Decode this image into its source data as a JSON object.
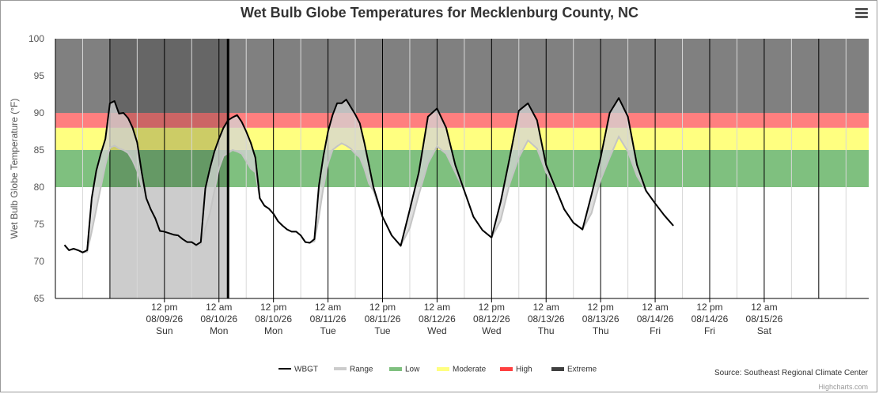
{
  "chart_data": {
    "type": "line",
    "title": "Wet Bulb Globe Temperatures for Mecklenburg County, NC",
    "ylabel": "Wet Bulb Globe Temperature (°F)",
    "ylim": [
      65,
      100
    ],
    "yticks": [
      65,
      70,
      75,
      80,
      85,
      90,
      95,
      100
    ],
    "x_unit": "hours",
    "xlim": [
      -12,
      167
    ],
    "x_ticks": [
      {
        "x": 12,
        "lines": [
          "12 pm",
          "08/09/26",
          "Sun"
        ]
      },
      {
        "x": 24,
        "lines": [
          "12 am",
          "08/10/26",
          "Mon"
        ]
      },
      {
        "x": 36,
        "lines": [
          "12 pm",
          "08/10/26",
          "Mon"
        ]
      },
      {
        "x": 48,
        "lines": [
          "12 am",
          "08/11/26",
          "Tue"
        ]
      },
      {
        "x": 60,
        "lines": [
          "12 pm",
          "08/11/26",
          "Tue"
        ]
      },
      {
        "x": 72,
        "lines": [
          "12 am",
          "08/12/26",
          "Wed"
        ]
      },
      {
        "x": 84,
        "lines": [
          "12 pm",
          "08/12/26",
          "Wed"
        ]
      },
      {
        "x": 96,
        "lines": [
          "12 am",
          "08/13/26",
          "Thu"
        ]
      },
      {
        "x": 108,
        "lines": [
          "12 pm",
          "08/13/26",
          "Thu"
        ]
      },
      {
        "x": 120,
        "lines": [
          "12 am",
          "08/14/26",
          "Fri"
        ]
      },
      {
        "x": 132,
        "lines": [
          "12 pm",
          "08/14/26",
          "Fri"
        ]
      },
      {
        "x": 144,
        "lines": [
          "12 am",
          "08/15/26",
          "Sat"
        ]
      }
    ],
    "bands": [
      {
        "name": "Low",
        "from": 80,
        "to": 85,
        "color": "#7fc07f"
      },
      {
        "name": "Moderate",
        "from": 85,
        "to": 88,
        "color": "#ffff80"
      },
      {
        "name": "High",
        "from": 88,
        "to": 90,
        "color": "#ff7f7f"
      },
      {
        "name": "Extreme",
        "from": 90,
        "to": 100,
        "color": "#808080"
      }
    ],
    "observed_shade": {
      "from": 0,
      "to": 26,
      "color": "#000000"
    },
    "current_marker": 26,
    "series": [
      {
        "name": "WBGT",
        "color": "#000000",
        "points": [
          [
            -10,
            72.2
          ],
          [
            -9,
            71.5
          ],
          [
            -8,
            71.7
          ],
          [
            -7,
            71.5
          ],
          [
            -6,
            71.2
          ],
          [
            -5,
            71.5
          ],
          [
            -4,
            78.5
          ],
          [
            -3,
            82.2
          ],
          [
            -2,
            84.5
          ],
          [
            -1,
            86.5
          ],
          [
            0,
            91.3
          ],
          [
            1,
            91.6
          ],
          [
            2,
            89.9
          ],
          [
            3,
            90
          ],
          [
            4,
            89.3
          ],
          [
            5,
            88
          ],
          [
            6,
            86
          ],
          [
            7,
            82
          ],
          [
            8,
            78.5
          ],
          [
            9,
            77
          ],
          [
            10,
            75.8
          ],
          [
            11,
            74.1
          ],
          [
            12,
            74
          ],
          [
            13,
            73.8
          ],
          [
            14,
            73.6
          ],
          [
            15,
            73.5
          ],
          [
            16,
            73
          ],
          [
            17,
            72.6
          ],
          [
            18,
            72.6
          ],
          [
            19,
            72.2
          ],
          [
            20,
            72.6
          ],
          [
            21,
            79.8
          ],
          [
            22,
            82.5
          ],
          [
            23,
            84.8
          ],
          [
            24,
            86.5
          ],
          [
            25,
            88
          ],
          [
            26,
            89
          ],
          [
            27,
            89.4
          ],
          [
            28,
            89.7
          ],
          [
            29,
            88.8
          ],
          [
            30,
            87.5
          ],
          [
            31,
            86
          ],
          [
            32,
            84
          ],
          [
            33,
            78.5
          ],
          [
            34,
            77.5
          ],
          [
            35,
            77.1
          ],
          [
            36,
            76.4
          ],
          [
            37,
            75.4
          ],
          [
            38,
            74.8
          ],
          [
            39,
            74.3
          ],
          [
            40,
            74
          ],
          [
            41,
            74
          ],
          [
            42,
            73.5
          ],
          [
            43,
            72.6
          ],
          [
            44,
            72.5
          ],
          [
            45,
            73
          ],
          [
            46,
            80.2
          ],
          [
            47,
            84.2
          ],
          [
            48,
            87.5
          ],
          [
            49,
            89.7
          ],
          [
            50,
            91.3
          ],
          [
            51,
            91.3
          ],
          [
            52,
            91.8
          ],
          [
            53,
            90.8
          ],
          [
            54,
            89.8
          ],
          [
            55,
            88.6
          ],
          [
            56,
            86
          ],
          [
            57,
            83
          ],
          [
            58,
            80
          ],
          [
            60,
            76
          ],
          [
            62,
            73.5
          ],
          [
            64,
            72.1
          ],
          [
            66,
            77
          ],
          [
            68,
            82
          ],
          [
            70,
            89.5
          ],
          [
            72,
            90.6
          ],
          [
            74,
            88
          ],
          [
            76,
            83
          ],
          [
            78,
            79.5
          ],
          [
            80,
            76
          ],
          [
            82,
            74.2
          ],
          [
            84,
            73.2
          ],
          [
            86,
            78
          ],
          [
            88,
            84
          ],
          [
            90,
            90.3
          ],
          [
            92,
            91.3
          ],
          [
            94,
            89
          ],
          [
            96,
            83
          ],
          [
            98,
            80
          ],
          [
            100,
            77
          ],
          [
            102,
            75.2
          ],
          [
            104,
            74.3
          ],
          [
            106,
            79
          ],
          [
            108,
            84
          ],
          [
            110,
            90
          ],
          [
            112,
            92
          ],
          [
            114,
            89.5
          ],
          [
            116,
            83
          ],
          [
            118,
            79.5
          ],
          [
            120,
            77.8
          ],
          [
            122,
            76.2
          ],
          [
            124,
            74.8
          ]
        ]
      },
      {
        "name": "Range",
        "color": "#cccccc",
        "points": [
          [
            -10,
            72.2
          ],
          [
            -9,
            71.5
          ],
          [
            -8,
            71.7
          ],
          [
            -7,
            71.5
          ],
          [
            -6,
            71.2
          ],
          [
            -5,
            71.3
          ],
          [
            -4,
            74
          ],
          [
            -3,
            77
          ],
          [
            -2,
            80
          ],
          [
            -1,
            83
          ],
          [
            0,
            85.3
          ],
          [
            1,
            85.6
          ],
          [
            2,
            85.2
          ],
          [
            3,
            85
          ],
          [
            4,
            84.6
          ],
          [
            5,
            83.6
          ],
          [
            6,
            82.2
          ],
          [
            7,
            80
          ],
          [
            8,
            78.5
          ],
          [
            9,
            77
          ],
          [
            10,
            75.8
          ],
          [
            11,
            74.1
          ],
          [
            12,
            74
          ],
          [
            13,
            73.8
          ],
          [
            14,
            73.6
          ],
          [
            15,
            73.5
          ],
          [
            16,
            73
          ],
          [
            17,
            72.6
          ],
          [
            18,
            72.6
          ],
          [
            19,
            72
          ],
          [
            20,
            72.2
          ],
          [
            21,
            74.5
          ],
          [
            22,
            76.5
          ],
          [
            23,
            79.5
          ],
          [
            24,
            82.5
          ],
          [
            25,
            84.2
          ],
          [
            26,
            84.6
          ],
          [
            27,
            85
          ],
          [
            28,
            84.8
          ],
          [
            29,
            84.5
          ],
          [
            30,
            83.5
          ],
          [
            31,
            82.5
          ],
          [
            32,
            82
          ],
          [
            33,
            78.5
          ],
          [
            34,
            77.5
          ],
          [
            35,
            77.1
          ],
          [
            36,
            76.4
          ],
          [
            37,
            75.4
          ],
          [
            38,
            74.8
          ],
          [
            39,
            74.3
          ],
          [
            40,
            74
          ],
          [
            41,
            74
          ],
          [
            42,
            73.5
          ],
          [
            43,
            72.6
          ],
          [
            44,
            72.5
          ],
          [
            45,
            72.7
          ],
          [
            46,
            76
          ],
          [
            47,
            80
          ],
          [
            48,
            83.2
          ],
          [
            49,
            85
          ],
          [
            50,
            85.5
          ],
          [
            51,
            85.9
          ],
          [
            52,
            85.6
          ],
          [
            53,
            85.2
          ],
          [
            54,
            84.5
          ],
          [
            55,
            84
          ],
          [
            56,
            82.5
          ],
          [
            57,
            80.5
          ],
          [
            58,
            79.5
          ],
          [
            60,
            76
          ],
          [
            62,
            73.5
          ],
          [
            64,
            72.1
          ],
          [
            66,
            74.5
          ],
          [
            68,
            79
          ],
          [
            70,
            83.2
          ],
          [
            72,
            85.5
          ],
          [
            74,
            84.5
          ],
          [
            76,
            82
          ],
          [
            78,
            79.5
          ],
          [
            80,
            76
          ],
          [
            82,
            74.2
          ],
          [
            84,
            73.2
          ],
          [
            86,
            75.5
          ],
          [
            88,
            80.5
          ],
          [
            90,
            84
          ],
          [
            92,
            86.3
          ],
          [
            94,
            85.2
          ],
          [
            96,
            82
          ],
          [
            98,
            80
          ],
          [
            100,
            77
          ],
          [
            102,
            75.2
          ],
          [
            104,
            74.3
          ],
          [
            106,
            76.5
          ],
          [
            108,
            81
          ],
          [
            110,
            84
          ],
          [
            112,
            86.8
          ],
          [
            114,
            84.8
          ],
          [
            116,
            81.5
          ],
          [
            118,
            79.5
          ],
          [
            120,
            77.8
          ],
          [
            122,
            76.2
          ],
          [
            124,
            74.8
          ]
        ]
      }
    ],
    "legend": [
      {
        "name": "WBGT",
        "color": "#000000",
        "kind": "line"
      },
      {
        "name": "Range",
        "color": "#cccccc",
        "kind": "line"
      },
      {
        "name": "Low",
        "color": "#7fc07f",
        "kind": "rect"
      },
      {
        "name": "Moderate",
        "color": "#ffff80",
        "kind": "rect"
      },
      {
        "name": "High",
        "color": "#ff4040",
        "kind": "rect"
      },
      {
        "name": "Extreme",
        "color": "#404040",
        "kind": "rect"
      }
    ],
    "legend_position": "bottom-center",
    "grid": "vertical"
  },
  "source_text": "Source: Southeast Regional Climate Center",
  "credits_text": "Highcharts.com"
}
